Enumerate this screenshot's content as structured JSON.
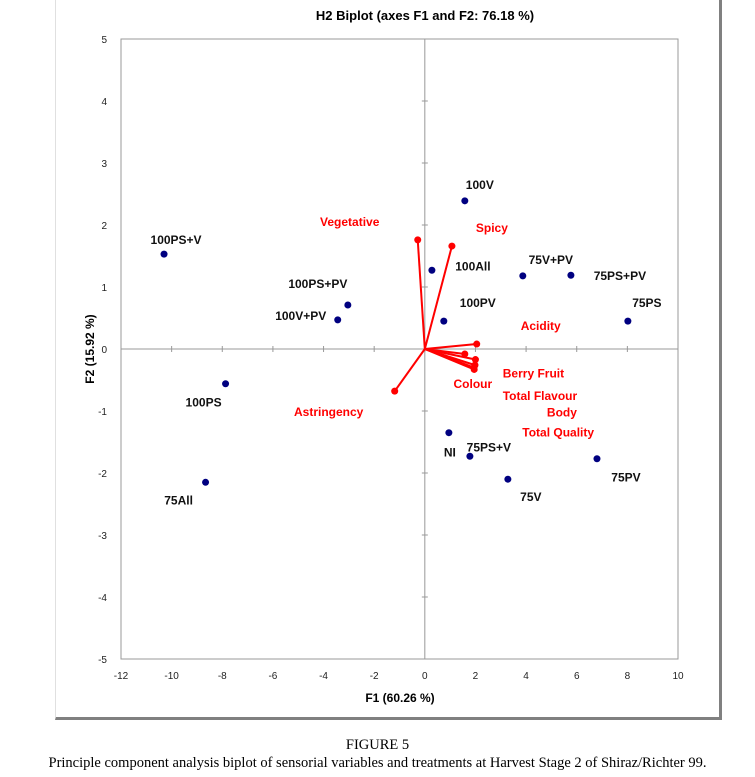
{
  "figure": {
    "number_label": "FIGURE 5",
    "caption": "Principle component analysis biplot of sensorial variables and treatments at Harvest Stage 2 of Shiraz/Richter 99."
  },
  "chart_data": {
    "type": "scatter",
    "title": "H2  Biplot (axes F1 and F2: 76.18 %)",
    "xlabel": "F1 (60.26 %)",
    "ylabel": "F2 (15.92 %)",
    "xlim": [
      -12,
      10
    ],
    "ylim": [
      -5,
      5
    ],
    "xticks": [
      -12,
      -10,
      -8,
      -6,
      -4,
      -2,
      0,
      2,
      4,
      6,
      8,
      10
    ],
    "yticks": [
      5,
      4,
      3,
      2,
      1,
      0,
      -1,
      -2,
      -3,
      -4,
      -5
    ],
    "grid": false,
    "colors": {
      "observations": "#000080",
      "variables": "#ff0000",
      "axes": "#999999"
    },
    "observations": [
      {
        "label": "100PS+V",
        "x": -10.3,
        "y": 1.53
      },
      {
        "label": "100V",
        "x": 1.58,
        "y": 2.39
      },
      {
        "label": "100All",
        "x": 0.28,
        "y": 1.27
      },
      {
        "label": "75V+PV",
        "x": 3.87,
        "y": 1.18
      },
      {
        "label": "75PS+PV",
        "x": 5.77,
        "y": 1.19
      },
      {
        "label": "75PS",
        "x": 8.02,
        "y": 0.45
      },
      {
        "label": "100PS+PV",
        "x": -3.04,
        "y": 0.71
      },
      {
        "label": "100V+PV",
        "x": -3.44,
        "y": 0.47
      },
      {
        "label": "100PV",
        "x": 0.75,
        "y": 0.45
      },
      {
        "label": "100PS",
        "x": -7.87,
        "y": -0.56
      },
      {
        "label": "75All",
        "x": -8.66,
        "y": -2.15
      },
      {
        "label": "75PS+V",
        "x": 0.95,
        "y": -1.35
      },
      {
        "label": "NI",
        "x": 1.78,
        "y": -1.73
      },
      {
        "label": "75V",
        "x": 3.28,
        "y": -2.1
      },
      {
        "label": "75PV",
        "x": 6.8,
        "y": -1.77
      }
    ],
    "variables": [
      {
        "label": "Vegetative",
        "x": -0.28,
        "y": 1.76
      },
      {
        "label": "Spicy",
        "x": 1.07,
        "y": 1.66
      },
      {
        "label": "Acidity",
        "x": 2.05,
        "y": 0.08
      },
      {
        "label": "Colour",
        "x": 1.58,
        "y": -0.08
      },
      {
        "label": "Berry Fruit",
        "x": 2.0,
        "y": -0.17
      },
      {
        "label": "Total Flavour",
        "x": 1.98,
        "y": -0.26
      },
      {
        "label": "Body",
        "x": 1.94,
        "y": -0.3
      },
      {
        "label": "Total Quality",
        "x": 1.95,
        "y": -0.33
      },
      {
        "label": "Astringency",
        "x": -1.19,
        "y": -0.68
      }
    ]
  }
}
